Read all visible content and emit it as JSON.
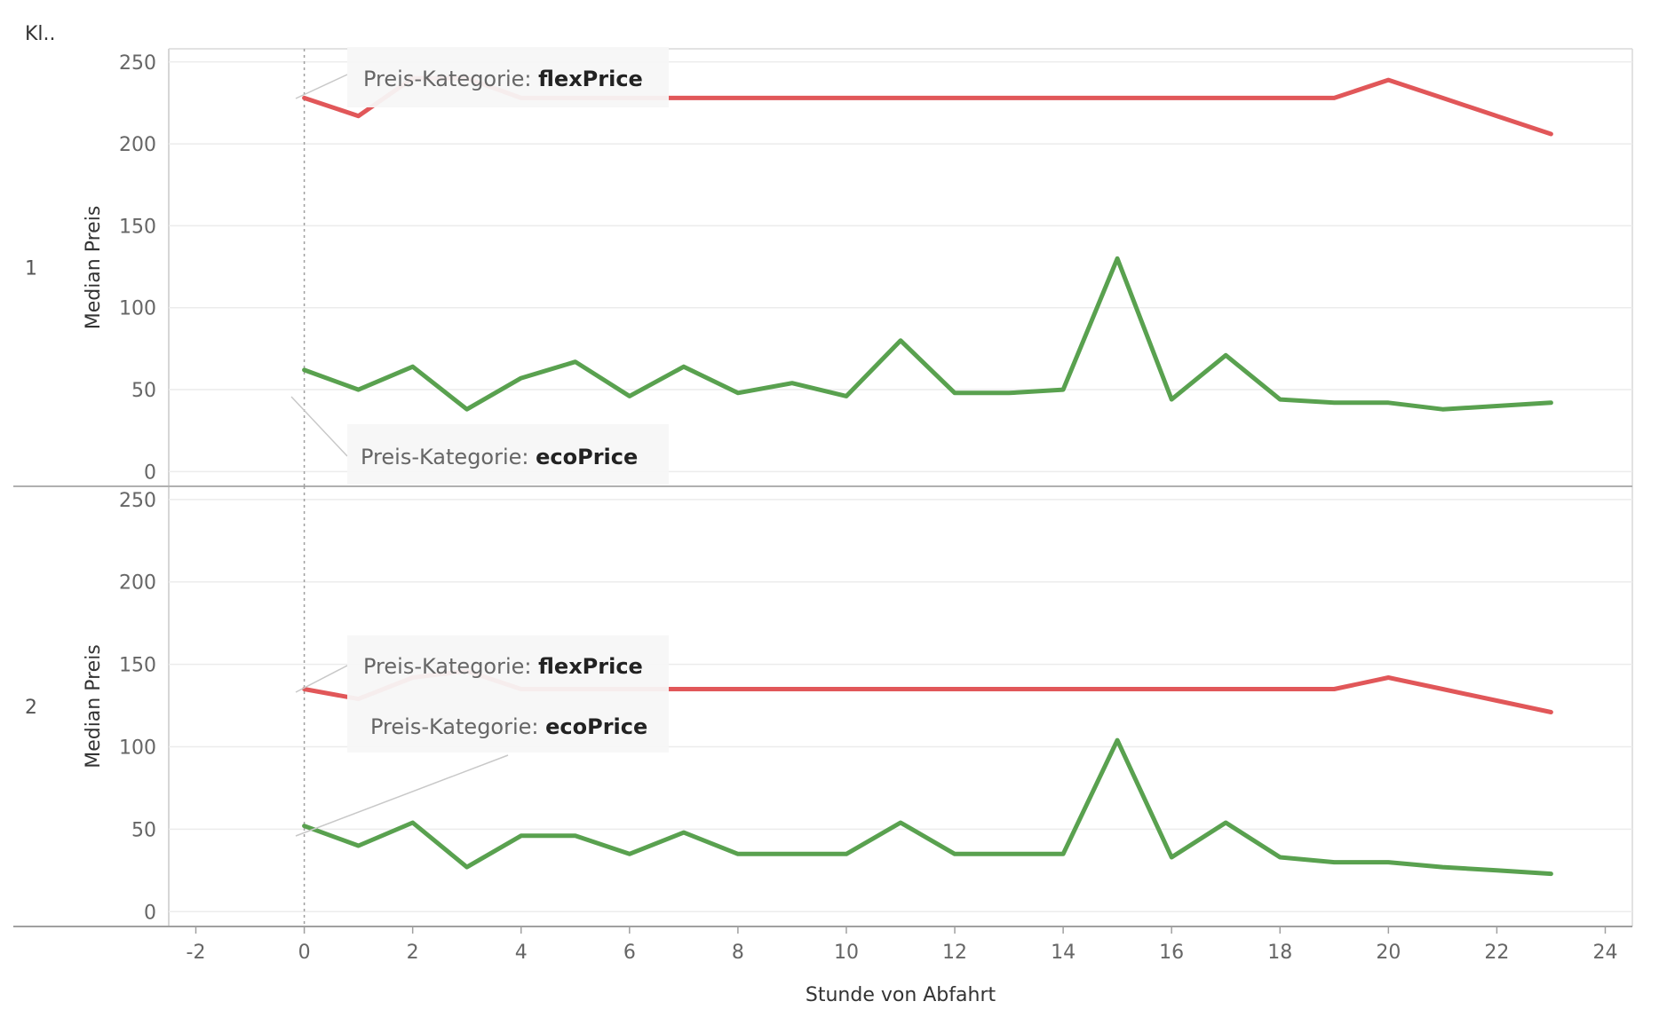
{
  "chart_data": {
    "type": "line",
    "row_header": "Kl..",
    "xlabel": "Stunde von Abfahrt",
    "ylabel": "Median Preis",
    "xlim": [
      -2.5,
      24.5
    ],
    "ylim": [
      -9,
      258
    ],
    "x_ticks": [
      -2,
      0,
      2,
      4,
      6,
      8,
      10,
      12,
      14,
      16,
      18,
      20,
      22,
      24
    ],
    "y_ticks": [
      0,
      50,
      100,
      150,
      200,
      250
    ],
    "reference_line_x": 0,
    "grid": true,
    "panels": [
      {
        "row_label": "1",
        "series": [
          {
            "name": "flexPrice",
            "color": "#e15759",
            "x": [
              0,
              1,
              2,
              3,
              4,
              5,
              6,
              7,
              8,
              9,
              10,
              11,
              12,
              13,
              14,
              15,
              16,
              17,
              18,
              19,
              20,
              21,
              22,
              23
            ],
            "y": [
              228,
              217,
              240,
              240,
              228,
              228,
              228,
              228,
              228,
              228,
              228,
              228,
              228,
              228,
              228,
              228,
              228,
              228,
              228,
              228,
              239,
              228,
              217,
              206
            ]
          },
          {
            "name": "ecoPrice",
            "color": "#59a14f",
            "x": [
              0,
              1,
              2,
              3,
              4,
              5,
              6,
              7,
              8,
              9,
              10,
              11,
              12,
              13,
              14,
              15,
              16,
              17,
              18,
              19,
              20,
              21,
              22,
              23
            ],
            "y": [
              62,
              50,
              64,
              38,
              57,
              67,
              46,
              64,
              48,
              54,
              46,
              80,
              48,
              48,
              50,
              130,
              44,
              71,
              44,
              42,
              42,
              38,
              40,
              42
            ]
          }
        ],
        "annotations": [
          {
            "label": "Preis-Kategorie:",
            "value": "flexPrice"
          },
          {
            "label": "Preis-Kategorie:",
            "value": "ecoPrice"
          }
        ]
      },
      {
        "row_label": "2",
        "series": [
          {
            "name": "flexPrice",
            "color": "#e15759",
            "x": [
              0,
              1,
              2,
              3,
              4,
              5,
              6,
              7,
              8,
              9,
              10,
              11,
              12,
              13,
              14,
              15,
              16,
              17,
              18,
              19,
              20,
              21,
              22,
              23
            ],
            "y": [
              135,
              129,
              142,
              146,
              135,
              135,
              135,
              135,
              135,
              135,
              135,
              135,
              135,
              135,
              135,
              135,
              135,
              135,
              135,
              135,
              142,
              135,
              128,
              121
            ]
          },
          {
            "name": "ecoPrice",
            "color": "#59a14f",
            "x": [
              0,
              1,
              2,
              3,
              4,
              5,
              6,
              7,
              8,
              9,
              10,
              11,
              12,
              13,
              14,
              15,
              16,
              17,
              18,
              19,
              20,
              21,
              22,
              23
            ],
            "y": [
              52,
              40,
              54,
              27,
              46,
              46,
              35,
              48,
              35,
              35,
              35,
              54,
              35,
              35,
              35,
              104,
              33,
              54,
              33,
              30,
              30,
              27,
              25,
              23
            ]
          }
        ],
        "annotations": [
          {
            "label": "Preis-Kategorie:",
            "value": "flexPrice"
          },
          {
            "label": "Preis-Kategorie:",
            "value": "ecoPrice"
          }
        ]
      }
    ]
  }
}
